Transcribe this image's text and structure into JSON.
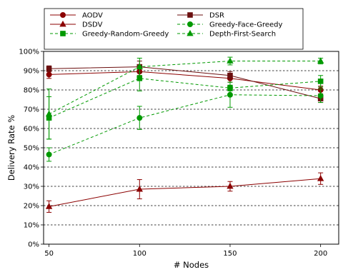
{
  "chart_data": {
    "type": "line",
    "xlabel": "# Nodes",
    "ylabel": "Delivery Rate %",
    "x": [
      50,
      100,
      150,
      200
    ],
    "x_ticks": [
      "50",
      "100",
      "150",
      "200"
    ],
    "xlim": [
      47,
      210
    ],
    "ylim": [
      0,
      100
    ],
    "y_ticks": [
      "0%",
      "10%",
      "20%",
      "30%",
      "40%",
      "50%",
      "60%",
      "70%",
      "80%",
      "90%",
      "100%"
    ],
    "grid": "horizontal dashed",
    "legend_position": "top, above plot, 2 columns",
    "series": [
      {
        "name": "AODV",
        "color": "#8b0000",
        "dash": "solid",
        "marker": "circle",
        "values": [
          88,
          89.5,
          86,
          80
        ],
        "err": [
          2,
          2,
          2,
          2
        ]
      },
      {
        "name": "DSR",
        "color": "#6b0f0f",
        "dash": "solid",
        "marker": "square",
        "values": [
          91,
          92,
          87.5,
          75.5
        ],
        "err": [
          1.5,
          3,
          2,
          2
        ]
      },
      {
        "name": "DSDV",
        "color": "#8b0000",
        "dash": "solid",
        "marker": "triangle",
        "values": [
          19.5,
          28.5,
          30,
          34
        ],
        "err": [
          3,
          5,
          2.5,
          3
        ]
      },
      {
        "name": "Greedy-Face-Greedy",
        "color": "#009900",
        "dash": "dashed",
        "marker": "circle",
        "values": [
          46.5,
          65.5,
          77.5,
          77
        ],
        "err": [
          3.5,
          6,
          6.5,
          3.5
        ]
      },
      {
        "name": "Greedy-Random-Greedy",
        "color": "#009900",
        "dash": "dashed",
        "marker": "square",
        "values": [
          65.5,
          86,
          81,
          84.5
        ],
        "err": [
          11,
          6.5,
          1.5,
          3
        ]
      },
      {
        "name": "Depth-First-Search",
        "color": "#009900",
        "dash": "dashed",
        "marker": "triangle",
        "values": [
          67.5,
          92,
          95,
          95
        ],
        "err": [
          13,
          4.5,
          2,
          1.5
        ]
      }
    ]
  }
}
